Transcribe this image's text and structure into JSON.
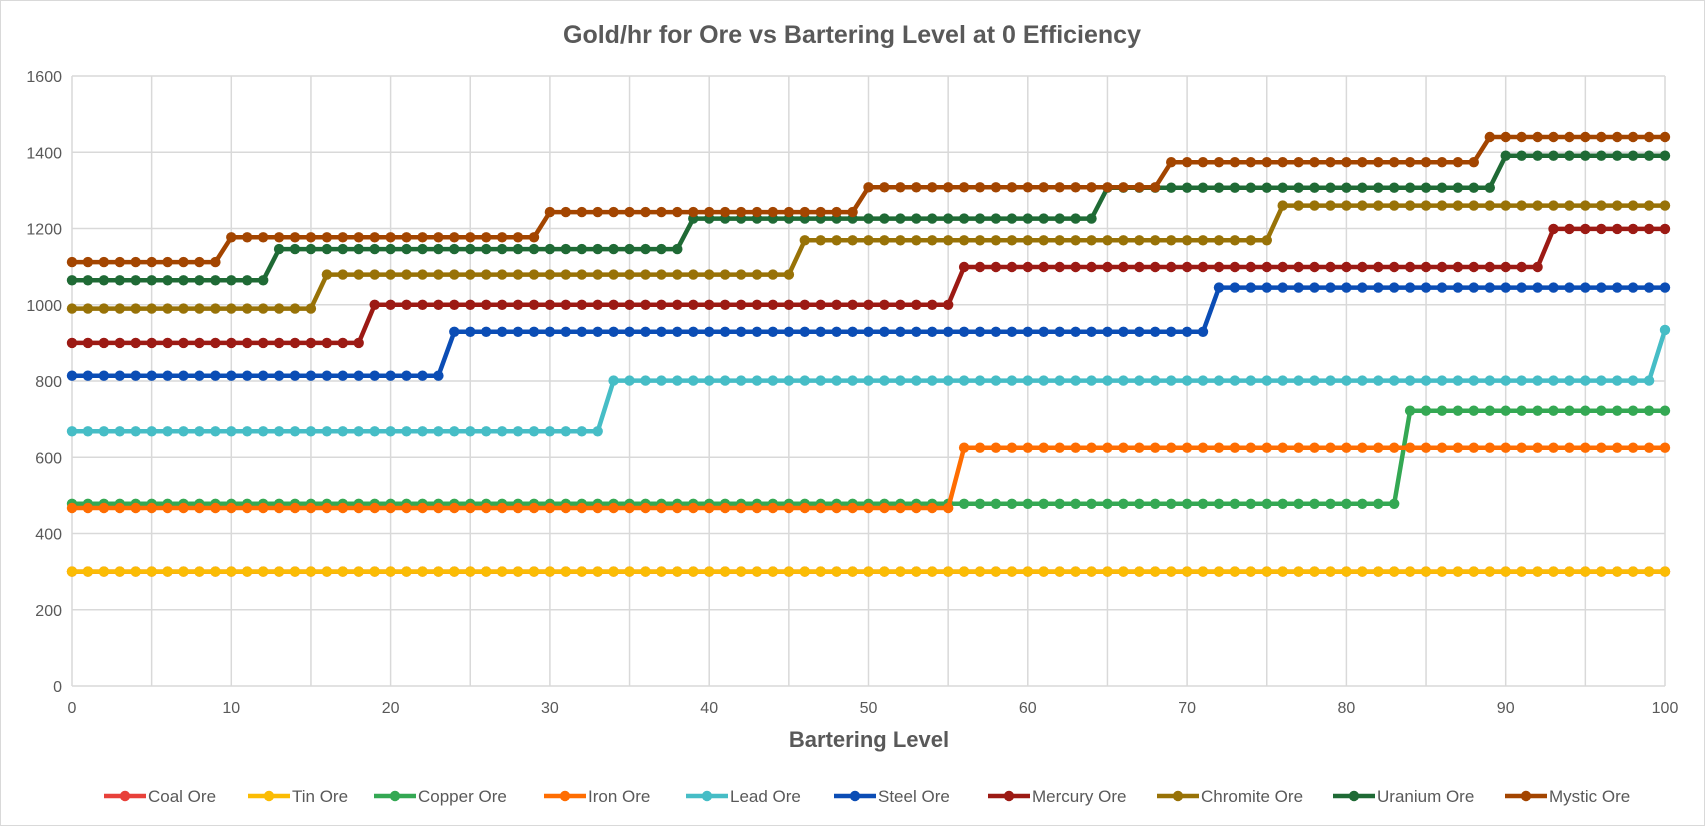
{
  "chart_data": {
    "type": "line",
    "title": "Gold/hr for Ore vs Bartering Level at 0 Efficiency",
    "xlabel": "Bartering Level",
    "ylabel": "",
    "xlim": [
      0,
      100
    ],
    "ylim": [
      0,
      1600
    ],
    "xticks": [
      "0",
      "10",
      "20",
      "30",
      "40",
      "50",
      "60",
      "70",
      "80",
      "90",
      "100"
    ],
    "yticks": [
      "0",
      "200",
      "400",
      "600",
      "800",
      "1000",
      "1200",
      "1400",
      "1600"
    ],
    "grid": true,
    "legend_position": "bottom",
    "x": "integers 0..100 (step 1)",
    "series": [
      {
        "name": "Coal Ore",
        "color": "#e8413a",
        "steps": [
          [
            0,
            300
          ]
        ]
      },
      {
        "name": "Tin Ore",
        "color": "#fbbc04",
        "steps": [
          [
            0,
            300
          ]
        ]
      },
      {
        "name": "Copper Ore",
        "color": "#34a853",
        "steps": [
          [
            0,
            478
          ],
          [
            84,
            722
          ]
        ]
      },
      {
        "name": "Iron Ore",
        "color": "#ff6d01",
        "steps": [
          [
            0,
            467
          ],
          [
            56,
            625
          ]
        ]
      },
      {
        "name": "Lead Ore",
        "color": "#46bdc6",
        "steps": [
          [
            0,
            668
          ],
          [
            34,
            801
          ],
          [
            100,
            934
          ]
        ]
      },
      {
        "name": "Steel Ore",
        "color": "#0b4db5",
        "steps": [
          [
            0,
            814
          ],
          [
            24,
            929
          ],
          [
            72,
            1045
          ]
        ]
      },
      {
        "name": "Mercury Ore",
        "color": "#9c1a14",
        "steps": [
          [
            0,
            900
          ],
          [
            19,
            1000
          ],
          [
            56,
            1099
          ],
          [
            93,
            1199
          ]
        ]
      },
      {
        "name": "Chromite Ore",
        "color": "#987207",
        "steps": [
          [
            0,
            990
          ],
          [
            16,
            1079
          ],
          [
            46,
            1169
          ],
          [
            76,
            1260
          ]
        ]
      },
      {
        "name": "Uranium Ore",
        "color": "#1f6a35",
        "steps": [
          [
            0,
            1064
          ],
          [
            13,
            1146
          ],
          [
            39,
            1226
          ],
          [
            65,
            1307
          ],
          [
            90,
            1391
          ]
        ]
      },
      {
        "name": "Mystic Ore",
        "color": "#a34500",
        "steps": [
          [
            0,
            1112
          ],
          [
            10,
            1177
          ],
          [
            30,
            1243
          ],
          [
            50,
            1308
          ],
          [
            69,
            1374
          ],
          [
            89,
            1440
          ]
        ]
      }
    ]
  }
}
